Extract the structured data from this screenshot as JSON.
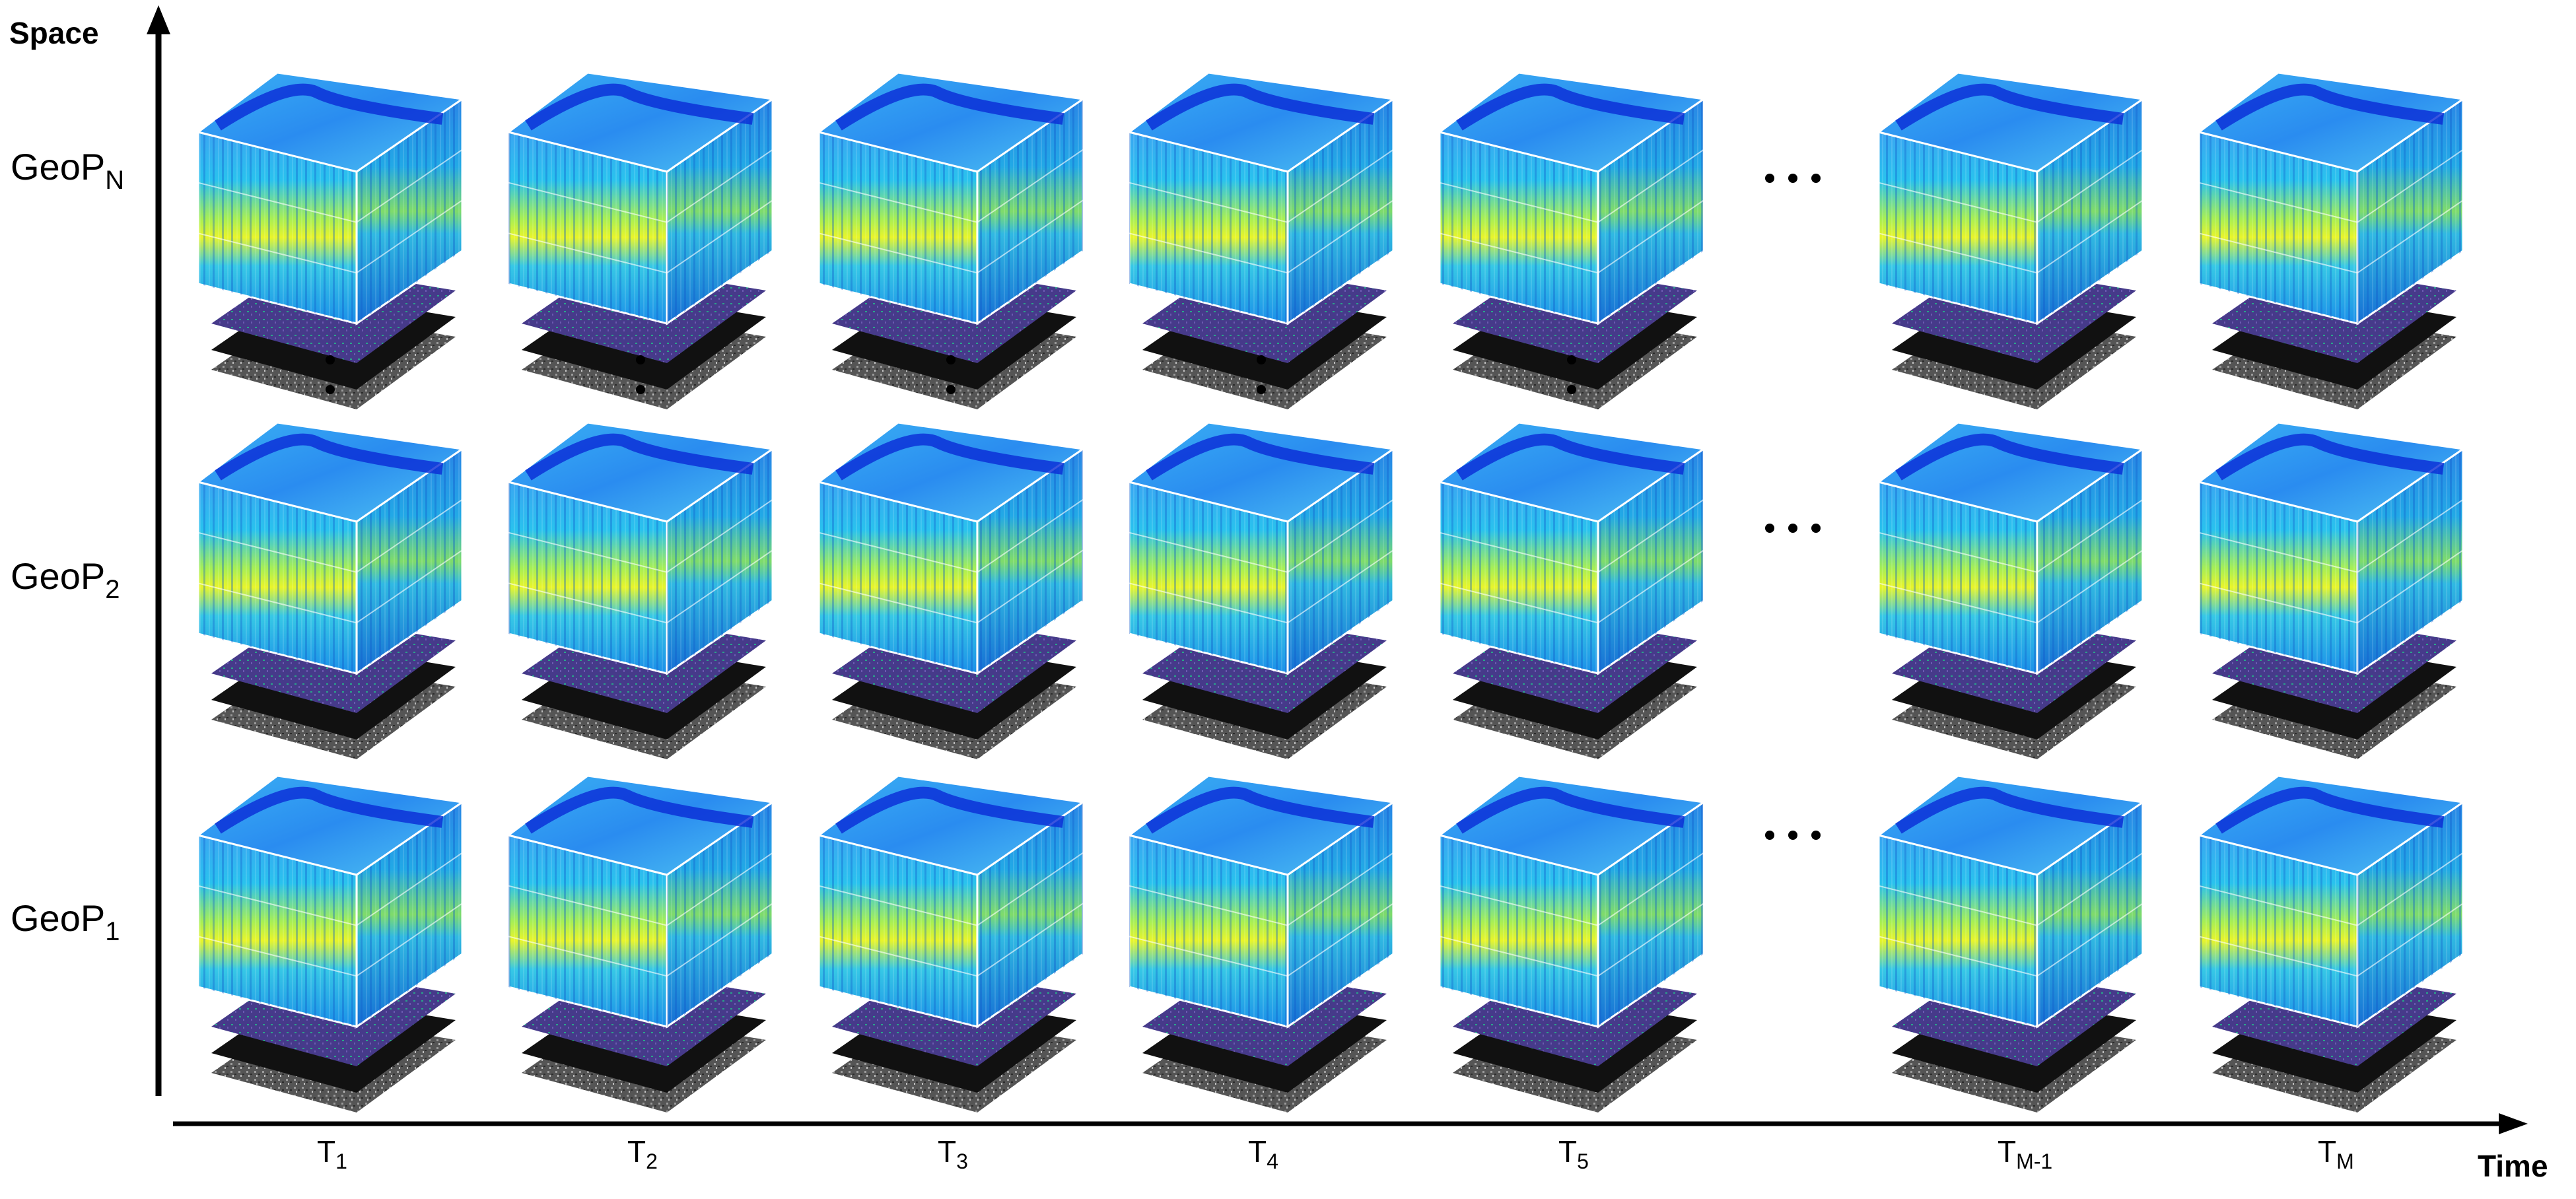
{
  "axes": {
    "y_title": "Space",
    "x_title": "Time"
  },
  "rows": [
    {
      "id": "geop-n",
      "base": "GeoP",
      "sub": "N"
    },
    {
      "id": "geop-2",
      "base": "GeoP",
      "sub": "2"
    },
    {
      "id": "geop-1",
      "base": "GeoP",
      "sub": "1"
    }
  ],
  "columns": [
    {
      "id": "t1",
      "base": "T",
      "sub": "1"
    },
    {
      "id": "t2",
      "base": "T",
      "sub": "2"
    },
    {
      "id": "t3",
      "base": "T",
      "sub": "3"
    },
    {
      "id": "t4",
      "base": "T",
      "sub": "4"
    },
    {
      "id": "t5",
      "base": "T",
      "sub": "5"
    },
    {
      "id": "tm-1",
      "base": "T",
      "sub": "M-1"
    },
    {
      "id": "tm",
      "base": "T",
      "sub": "M"
    }
  ],
  "colors": {
    "axis": "#000000",
    "cube_top": "#2f8ff0",
    "cube_front": "#1aa8f0",
    "cube_side": "#1577d9",
    "band_yellow": "#e8f52a",
    "band_green": "#7fe07a",
    "river": "#0a2ad6",
    "layer_purple": "#4a3f8f",
    "layer_gray": "#5a5a5a",
    "layer_black": "#111111"
  }
}
